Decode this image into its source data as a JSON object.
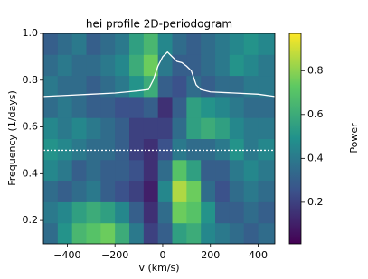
{
  "chart_data": {
    "type": "heatmap",
    "title": "hei profile 2D-periodogram",
    "xlabel": "v (km/s)",
    "ylabel": "Frequency (1/days)",
    "colorbar_label": "Power",
    "colormap": "viridis",
    "xlim": [
      -500,
      470
    ],
    "ylim": [
      0.1,
      1.0
    ],
    "xticks": [
      {
        "value": -400,
        "label": "−400"
      },
      {
        "value": -200,
        "label": "−200"
      },
      0,
      200,
      400
    ],
    "yticks": [
      0.2,
      0.4,
      0.6,
      0.8,
      {
        "value": 1,
        "label": "1.0"
      }
    ],
    "clim": [
      0.01,
      0.97
    ],
    "cticks": [
      0.2,
      0.4,
      0.6,
      0.8
    ],
    "heatmap": {
      "x_edges": [
        -500,
        -440,
        -380,
        -320,
        -260,
        -200,
        -140,
        -80,
        -20,
        40,
        100,
        160,
        220,
        280,
        340,
        400,
        470
      ],
      "y_edges": [
        0.1,
        0.19,
        0.28,
        0.37,
        0.46,
        0.55,
        0.64,
        0.73,
        0.82,
        0.91,
        1.0
      ],
      "values": [
        [
          0.35,
          0.5,
          0.65,
          0.7,
          0.75,
          0.6,
          0.4,
          0.2,
          0.3,
          0.55,
          0.6,
          0.45,
          0.4,
          0.35,
          0.3,
          0.35
        ],
        [
          0.4,
          0.45,
          0.55,
          0.6,
          0.55,
          0.45,
          0.3,
          0.15,
          0.35,
          0.75,
          0.7,
          0.5,
          0.3,
          0.3,
          0.35,
          0.3
        ],
        [
          0.35,
          0.3,
          0.35,
          0.4,
          0.3,
          0.25,
          0.2,
          0.1,
          0.45,
          0.85,
          0.75,
          0.35,
          0.25,
          0.35,
          0.4,
          0.35
        ],
        [
          0.45,
          0.4,
          0.3,
          0.35,
          0.3,
          0.3,
          0.25,
          0.15,
          0.35,
          0.7,
          0.55,
          0.3,
          0.3,
          0.4,
          0.45,
          0.4
        ],
        [
          0.5,
          0.45,
          0.4,
          0.35,
          0.35,
          0.3,
          0.2,
          0.15,
          0.25,
          0.4,
          0.35,
          0.35,
          0.4,
          0.5,
          0.4,
          0.45
        ],
        [
          0.45,
          0.4,
          0.45,
          0.4,
          0.35,
          0.3,
          0.2,
          0.2,
          0.2,
          0.35,
          0.55,
          0.6,
          0.55,
          0.45,
          0.4,
          0.4
        ],
        [
          0.35,
          0.4,
          0.35,
          0.3,
          0.3,
          0.25,
          0.25,
          0.3,
          0.15,
          0.3,
          0.55,
          0.5,
          0.45,
          0.4,
          0.35,
          0.35
        ],
        [
          0.4,
          0.35,
          0.35,
          0.3,
          0.35,
          0.4,
          0.5,
          0.6,
          0.3,
          0.25,
          0.35,
          0.3,
          0.35,
          0.35,
          0.4,
          0.4
        ],
        [
          0.35,
          0.4,
          0.35,
          0.35,
          0.4,
          0.45,
          0.6,
          0.75,
          0.4,
          0.3,
          0.3,
          0.35,
          0.4,
          0.5,
          0.45,
          0.4
        ],
        [
          0.3,
          0.35,
          0.4,
          0.3,
          0.35,
          0.4,
          0.55,
          0.65,
          0.45,
          0.35,
          0.3,
          0.35,
          0.4,
          0.45,
          0.5,
          0.45
        ]
      ]
    },
    "profile": {
      "color": "#ffffff",
      "x": [
        -500,
        -400,
        -300,
        -200,
        -150,
        -100,
        -60,
        -40,
        -20,
        0,
        20,
        40,
        60,
        80,
        100,
        120,
        140,
        160,
        200,
        300,
        400,
        470
      ],
      "y": [
        0.73,
        0.735,
        0.74,
        0.745,
        0.75,
        0.755,
        0.76,
        0.8,
        0.86,
        0.9,
        0.92,
        0.9,
        0.88,
        0.875,
        0.86,
        0.84,
        0.78,
        0.76,
        0.75,
        0.745,
        0.74,
        0.73
      ]
    },
    "hline": 0.5,
    "hline_color": "#ffffff"
  }
}
